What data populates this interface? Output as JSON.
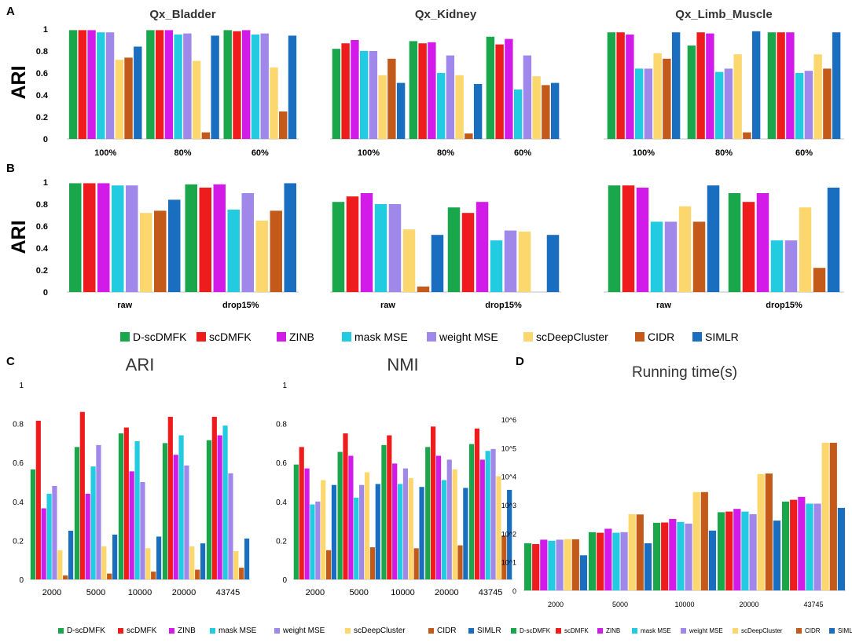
{
  "panel_labels": [
    "A",
    "B",
    "C",
    "D"
  ],
  "ylabel_ari": "ARI",
  "methods": [
    {
      "name": "D-scDMFK",
      "color": "#1aa64a"
    },
    {
      "name": "scDMFK",
      "color": "#ee1c1c"
    },
    {
      "name": "ZINB",
      "color": "#d21be8"
    },
    {
      "name": "mask MSE",
      "color": "#23cbe0"
    },
    {
      "name": "weight MSE",
      "color": "#9f88ea"
    },
    {
      "name": "scDeepCluster",
      "color": "#fbd76e"
    },
    {
      "name": "CIDR",
      "color": "#c35a1a"
    },
    {
      "name": "SIMLR",
      "color": "#1a6ec0"
    }
  ],
  "chart_data": [
    {
      "id": "A1",
      "type": "bar",
      "title": "Qx_Bladder",
      "ylabel": "ARI",
      "ylim": [
        0,
        1
      ],
      "yticks": [
        "0",
        "0.2",
        "0.4",
        "0.6",
        "0.8",
        "1"
      ],
      "categories": [
        "100%",
        "80%",
        "60%"
      ],
      "values": [
        [
          0.99,
          0.99,
          0.99,
          0.97,
          0.97,
          0.72,
          0.74,
          0.84
        ],
        [
          0.99,
          0.99,
          0.99,
          0.95,
          0.96,
          0.71,
          0.06,
          0.94
        ],
        [
          0.99,
          0.98,
          0.99,
          0.95,
          0.96,
          0.65,
          0.25,
          0.94
        ]
      ]
    },
    {
      "id": "A2",
      "type": "bar",
      "title": "Qx_Kidney",
      "ylim": [
        0,
        1
      ],
      "yticks": [
        "0",
        "0.2",
        "0.4",
        "0.6",
        "0.8",
        "1"
      ],
      "categories": [
        "100%",
        "80%",
        "60%"
      ],
      "values": [
        [
          0.82,
          0.87,
          0.9,
          0.8,
          0.8,
          0.58,
          0.73,
          0.51
        ],
        [
          0.89,
          0.87,
          0.88,
          0.6,
          0.76,
          0.58,
          0.05,
          0.5
        ],
        [
          0.93,
          0.86,
          0.91,
          0.45,
          0.76,
          0.57,
          0.49,
          0.51
        ]
      ]
    },
    {
      "id": "A3",
      "type": "bar",
      "title": "Qx_Limb_Muscle",
      "ylim": [
        0,
        1
      ],
      "yticks": [
        "0",
        "0.2",
        "0.4",
        "0.6",
        "0.8",
        "1"
      ],
      "categories": [
        "100%",
        "80%",
        "60%"
      ],
      "values": [
        [
          0.97,
          0.97,
          0.95,
          0.64,
          0.64,
          0.78,
          0.73,
          0.97
        ],
        [
          0.85,
          0.97,
          0.96,
          0.61,
          0.64,
          0.77,
          0.06,
          0.98
        ],
        [
          0.97,
          0.97,
          0.97,
          0.6,
          0.62,
          0.77,
          0.64,
          0.97
        ]
      ]
    },
    {
      "id": "B1",
      "type": "bar",
      "ylabel": "ARI",
      "ylim": [
        0,
        1
      ],
      "yticks": [
        "0",
        "0.2",
        "0.4",
        "0.6",
        "0.8",
        "1"
      ],
      "categories": [
        "raw",
        "drop15%"
      ],
      "values": [
        [
          0.99,
          0.99,
          0.99,
          0.97,
          0.97,
          0.72,
          0.74,
          0.84
        ],
        [
          0.98,
          0.95,
          0.98,
          0.75,
          0.9,
          0.65,
          0.74,
          0.99
        ]
      ]
    },
    {
      "id": "B2",
      "type": "bar",
      "ylim": [
        0,
        1
      ],
      "yticks": [
        "0",
        "0.2",
        "0.4",
        "0.6",
        "0.8",
        "1"
      ],
      "categories": [
        "raw",
        "drop15%"
      ],
      "values": [
        [
          0.82,
          0.87,
          0.9,
          0.8,
          0.8,
          0.57,
          0.05,
          0.52
        ],
        [
          0.77,
          0.72,
          0.82,
          0.47,
          0.56,
          0.55,
          0,
          0.52
        ]
      ]
    },
    {
      "id": "B3",
      "type": "bar",
      "ylim": [
        0,
        1
      ],
      "yticks": [
        "0",
        "0.2",
        "0.4",
        "0.6",
        "0.8",
        "1"
      ],
      "categories": [
        "raw",
        "drop15%"
      ],
      "values": [
        [
          0.97,
          0.97,
          0.95,
          0.64,
          0.64,
          0.78,
          0.64,
          0.97
        ],
        [
          0.9,
          0.82,
          0.9,
          0.47,
          0.47,
          0.77,
          0.22,
          0.95
        ]
      ]
    },
    {
      "id": "C1",
      "type": "bar",
      "title": "ARI",
      "ylim": [
        0,
        1
      ],
      "yticks": [
        "0",
        "0.2",
        "0.4",
        "0.6",
        "0.8",
        "1"
      ],
      "categories": [
        "2000",
        "5000",
        "10000",
        "20000",
        "43745"
      ],
      "values": [
        [
          0.565,
          0.815,
          0.365,
          0.44,
          0.48,
          0.15,
          0.02,
          0.25
        ],
        [
          0.68,
          0.86,
          0.44,
          0.58,
          0.69,
          0.17,
          0.03,
          0.23
        ],
        [
          0.75,
          0.78,
          0.555,
          0.71,
          0.5,
          0.16,
          0.04,
          0.22
        ],
        [
          0.7,
          0.835,
          0.64,
          0.74,
          0.585,
          0.17,
          0.05,
          0.185
        ],
        [
          0.715,
          0.835,
          0.74,
          0.79,
          0.545,
          0.145,
          0.06,
          0.21
        ]
      ]
    },
    {
      "id": "C2",
      "type": "bar",
      "title": "NMI",
      "ylim": [
        0,
        1
      ],
      "yticks": [
        "0",
        "0.2",
        "0.4",
        "0.6",
        "0.8",
        "1"
      ],
      "categories": [
        "2000",
        "5000",
        "10000",
        "20000",
        "43745"
      ],
      "values": [
        [
          0.59,
          0.68,
          0.57,
          0.385,
          0.4,
          0.51,
          0.15,
          0.485
        ],
        [
          0.655,
          0.75,
          0.635,
          0.42,
          0.485,
          0.55,
          0.165,
          0.49
        ],
        [
          0.69,
          0.74,
          0.595,
          0.49,
          0.57,
          0.52,
          0.16,
          0.475
        ],
        [
          0.68,
          0.785,
          0.635,
          0.51,
          0.615,
          0.565,
          0.175,
          0.47
        ],
        [
          0.695,
          0.775,
          0.615,
          0.66,
          0.67,
          0.53,
          0.225,
          0.46
        ]
      ]
    },
    {
      "id": "D",
      "type": "bar",
      "title": "Running time(s)",
      "yscale": "log",
      "ylim": [
        1,
        1000000
      ],
      "yticks": [
        "0",
        "10^1",
        "10^2",
        "10^3",
        "10^4",
        "10^5",
        "10^6"
      ],
      "categories": [
        "2000",
        "5000",
        "10000",
        "20000",
        "43745"
      ],
      "values": [
        [
          45,
          42,
          60,
          55,
          60,
          63,
          62,
          17
        ],
        [
          110,
          105,
          145,
          105,
          110,
          470,
          460,
          45
        ],
        [
          235,
          240,
          320,
          250,
          220,
          2800,
          2800,
          125
        ],
        [
          550,
          580,
          720,
          580,
          470,
          12000,
          12500,
          280
        ],
        [
          1300,
          1500,
          1900,
          1100,
          1100,
          150000,
          150000,
          780
        ]
      ]
    }
  ]
}
